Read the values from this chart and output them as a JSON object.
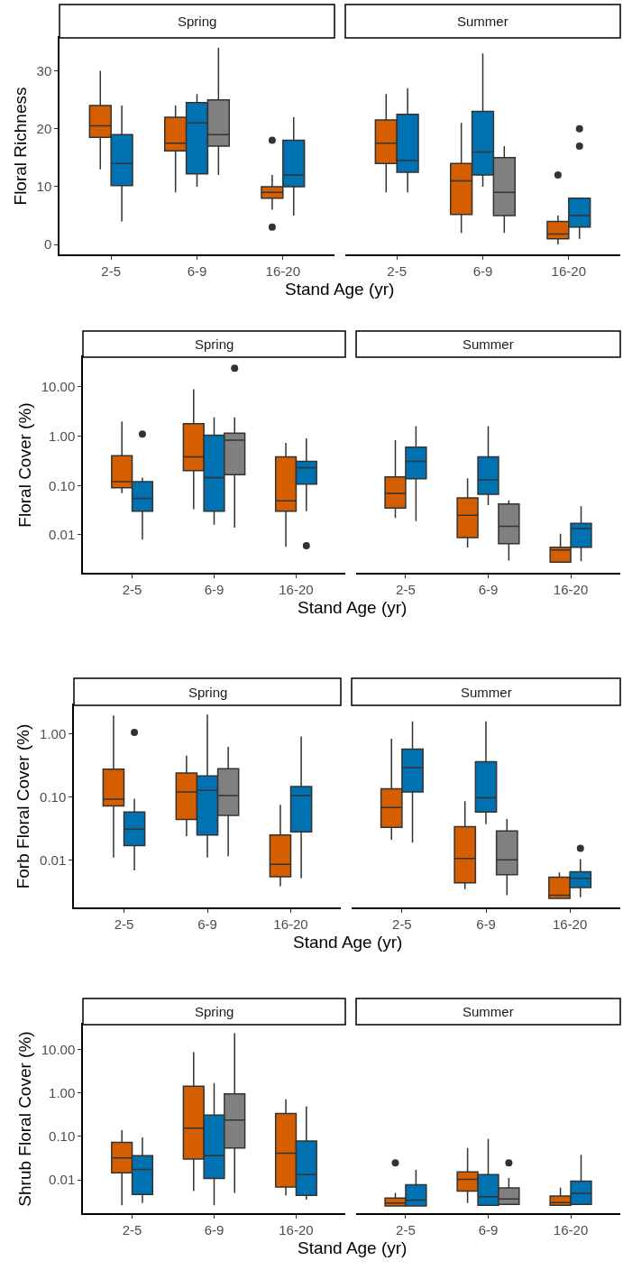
{
  "chart_data": [
    {
      "type": "box",
      "title": "Spring",
      "xlabel": "Stand Age (yr)",
      "ylabel": "Floral Richness",
      "categories": [
        "2-5",
        "6-9",
        "16-20"
      ],
      "ylim": [
        -1.7,
        35.7
      ],
      "yticks": [
        0,
        10,
        20,
        30
      ],
      "series": [
        {
          "color": "#d55e00",
          "boxes": [
            {
              "low": 13,
              "q1": 18.5,
              "median": 20.5,
              "q3": 24,
              "high": 30
            },
            {
              "low": 9,
              "q1": 16.2,
              "median": 17.5,
              "q3": 22,
              "high": 24
            },
            {
              "low": 6,
              "q1": 8,
              "median": 9,
              "q3": 10,
              "high": 12,
              "outliers": [
                3,
                18
              ]
            }
          ]
        },
        {
          "color": "#0072b2",
          "boxes": [
            {
              "low": 4,
              "q1": 10.2,
              "median": 14,
              "q3": 19,
              "high": 24
            },
            {
              "low": 10,
              "q1": 12.2,
              "median": 21,
              "q3": 24.5,
              "high": 26
            },
            {
              "low": 5,
              "q1": 10,
              "median": 12,
              "q3": 18,
              "high": 22
            }
          ]
        },
        {
          "color": "#808080",
          "boxes": [
            null,
            {
              "low": 12,
              "q1": 17,
              "median": 19,
              "q3": 25,
              "high": 34
            },
            null
          ]
        }
      ]
    },
    {
      "type": "box",
      "title": "Summer",
      "categories": [
        "2-5",
        "6-9",
        "16-20"
      ],
      "ylim": [
        -1.7,
        35.7
      ],
      "tick_labels": "x",
      "series": [
        {
          "color": "#d55e00",
          "boxes": [
            {
              "low": 9,
              "q1": 14,
              "median": 17.5,
              "q3": 21.5,
              "high": 26
            },
            {
              "low": 2,
              "q1": 5.2,
              "median": 11,
              "q3": 14,
              "high": 21
            },
            {
              "low": 0,
              "q1": 1,
              "median": 1.8,
              "q3": 4,
              "high": 5,
              "outliers": [
                12
              ]
            }
          ]
        },
        {
          "color": "#0072b2",
          "boxes": [
            {
              "low": 9,
              "q1": 12.5,
              "median": 14.5,
              "q3": 22.5,
              "high": 27
            },
            {
              "low": 10,
              "q1": 12,
              "median": 16,
              "q3": 23,
              "high": 33
            },
            {
              "low": 1,
              "q1": 3,
              "median": 5,
              "q3": 8,
              "high": 8,
              "outliers": [
                17,
                20
              ]
            }
          ]
        },
        {
          "color": "#808080",
          "boxes": [
            null,
            {
              "low": 2,
              "q1": 5,
              "median": 9,
              "q3": 15,
              "high": 17
            },
            null
          ]
        }
      ]
    },
    {
      "type": "box",
      "title": "Spring",
      "xlabel": "Stand Age (yr)",
      "ylabel": "Floral Cover (%)",
      "categories": [
        "2-5",
        "6-9",
        "16-20"
      ],
      "log": true,
      "ylim": [
        0.0017,
        40
      ],
      "yticks": [
        {
          "value": 0.01,
          "label": "0.01"
        },
        {
          "value": 0.1,
          "label": "0.10"
        },
        {
          "value": 1,
          "label": "1.00"
        },
        {
          "value": 10,
          "label": "10.00"
        }
      ],
      "series": [
        {
          "color": "#d55e00",
          "boxes": [
            {
              "low": 0.07,
              "q1": 0.09,
              "median": 0.12,
              "q3": 0.4,
              "high": 2.0
            },
            {
              "low": 0.033,
              "q1": 0.2,
              "median": 0.38,
              "q3": 1.8,
              "high": 9
            },
            {
              "low": 0.0057,
              "q1": 0.03,
              "median": 0.049,
              "q3": 0.38,
              "high": 0.73
            }
          ]
        },
        {
          "color": "#0072b2",
          "boxes": [
            {
              "low": 0.008,
              "q1": 0.03,
              "median": 0.055,
              "q3": 0.12,
              "high": 0.145,
              "outliers": [
                1.1
              ]
            },
            {
              "low": 0.016,
              "q1": 0.03,
              "median": 0.145,
              "q3": 1.05,
              "high": 2.4
            },
            {
              "low": 0.03,
              "q1": 0.107,
              "median": 0.23,
              "q3": 0.31,
              "high": 0.9,
              "outliers": [
                0.006
              ]
            }
          ]
        },
        {
          "color": "#808080",
          "boxes": [
            null,
            {
              "low": 0.014,
              "q1": 0.165,
              "median": 0.83,
              "q3": 1.15,
              "high": 2.4,
              "outliers": [
                24
              ]
            },
            null
          ]
        }
      ]
    },
    {
      "type": "box",
      "title": "Summer",
      "categories": [
        "2-5",
        "6-9",
        "16-20"
      ],
      "log": true,
      "ylim": [
        0.0017,
        40
      ],
      "tick_labels": "x",
      "series": [
        {
          "color": "#d55e00",
          "boxes": [
            {
              "low": 0.022,
              "q1": 0.035,
              "median": 0.069,
              "q3": 0.15,
              "high": 0.83
            },
            {
              "low": 0.0055,
              "q1": 0.0088,
              "median": 0.025,
              "q3": 0.056,
              "high": 0.14
            },
            {
              "low": 0.0028,
              "q1": 0.0028,
              "median": 0.0049,
              "q3": 0.0056,
              "high": 0.0105
            }
          ]
        },
        {
          "color": "#0072b2",
          "boxes": [
            {
              "low": 0.019,
              "q1": 0.137,
              "median": 0.31,
              "q3": 0.6,
              "high": 1.6
            },
            {
              "low": 0.04,
              "q1": 0.066,
              "median": 0.13,
              "q3": 0.38,
              "high": 1.6
            },
            {
              "low": 0.0029,
              "q1": 0.0056,
              "median": 0.0134,
              "q3": 0.017,
              "high": 0.038
            }
          ]
        },
        {
          "color": "#808080",
          "boxes": [
            null,
            {
              "low": 0.003,
              "q1": 0.0066,
              "median": 0.0148,
              "q3": 0.042,
              "high": 0.05
            },
            null
          ]
        }
      ]
    },
    {
      "type": "box",
      "title": "Spring",
      "xlabel": "Stand Age (yr)",
      "ylabel": "Forb Floral Cover (%)",
      "categories": [
        "2-5",
        "6-9",
        "16-20"
      ],
      "log": true,
      "ylim": [
        0.0018,
        2.8
      ],
      "yticks": [
        {
          "value": 0.01,
          "label": "0.01"
        },
        {
          "value": 0.1,
          "label": "0.10"
        },
        {
          "value": 1,
          "label": "1.00"
        }
      ],
      "series": [
        {
          "color": "#d55e00",
          "boxes": [
            {
              "low": 0.011,
              "q1": 0.072,
              "median": 0.092,
              "q3": 0.275,
              "high": 1.94
            },
            {
              "low": 0.024,
              "q1": 0.044,
              "median": 0.12,
              "q3": 0.24,
              "high": 0.45
            },
            {
              "low": 0.0039,
              "q1": 0.0055,
              "median": 0.0086,
              "q3": 0.025,
              "high": 0.075
            }
          ]
        },
        {
          "color": "#0072b2",
          "boxes": [
            {
              "low": 0.0069,
              "q1": 0.017,
              "median": 0.031,
              "q3": 0.058,
              "high": 0.094,
              "outliers": [
                1.05
              ]
            },
            {
              "low": 0.011,
              "q1": 0.025,
              "median": 0.127,
              "q3": 0.215,
              "high": 2.0
            },
            {
              "low": 0.0052,
              "q1": 0.028,
              "median": 0.105,
              "q3": 0.146,
              "high": 0.9
            }
          ]
        },
        {
          "color": "#808080",
          "boxes": [
            null,
            {
              "low": 0.0116,
              "q1": 0.051,
              "median": 0.105,
              "q3": 0.28,
              "high": 0.62
            },
            null
          ]
        }
      ]
    },
    {
      "type": "box",
      "title": "Summer",
      "categories": [
        "2-5",
        "6-9",
        "16-20"
      ],
      "log": true,
      "ylim": [
        0.0018,
        2.8
      ],
      "tick_labels": "x",
      "series": [
        {
          "color": "#d55e00",
          "boxes": [
            {
              "low": 0.021,
              "q1": 0.033,
              "median": 0.068,
              "q3": 0.135,
              "high": 0.83
            },
            {
              "low": 0.0035,
              "q1": 0.0044,
              "median": 0.0107,
              "q3": 0.034,
              "high": 0.086
            },
            {
              "low": 0.0025,
              "q1": 0.0025,
              "median": 0.0028,
              "q3": 0.0054,
              "high": 0.0064
            }
          ]
        },
        {
          "color": "#0072b2",
          "boxes": [
            {
              "low": 0.019,
              "q1": 0.12,
              "median": 0.29,
              "q3": 0.57,
              "high": 1.56
            },
            {
              "low": 0.037,
              "q1": 0.058,
              "median": 0.097,
              "q3": 0.36,
              "high": 1.56
            },
            {
              "low": 0.0026,
              "q1": 0.0037,
              "median": 0.0052,
              "q3": 0.0066,
              "high": 0.0104,
              "outliers": [
                0.0154
              ]
            }
          ]
        },
        {
          "color": "#808080",
          "boxes": [
            null,
            {
              "low": 0.0028,
              "q1": 0.0059,
              "median": 0.0102,
              "q3": 0.029,
              "high": 0.045
            },
            null
          ]
        }
      ]
    },
    {
      "type": "box",
      "title": "Spring",
      "xlabel": "Stand Age (yr)",
      "ylabel": "Shrub Floral Cover (%)",
      "categories": [
        "2-5",
        "6-9",
        "16-20"
      ],
      "log": true,
      "ylim": [
        0.0017,
        38
      ],
      "yticks": [
        {
          "value": 0.01,
          "label": "0.01"
        },
        {
          "value": 0.1,
          "label": "0.10"
        },
        {
          "value": 1,
          "label": "1.00"
        },
        {
          "value": 10,
          "label": "10.00"
        }
      ],
      "series": [
        {
          "color": "#d55e00",
          "boxes": [
            {
              "low": 0.0026,
              "q1": 0.0145,
              "median": 0.032,
              "q3": 0.073,
              "high": 0.14
            },
            {
              "low": 0.0055,
              "q1": 0.03,
              "median": 0.155,
              "q3": 1.45,
              "high": 8.8
            },
            {
              "low": 0.0044,
              "q1": 0.0068,
              "median": 0.041,
              "q3": 0.34,
              "high": 0.72
            }
          ]
        },
        {
          "color": "#0072b2",
          "boxes": [
            {
              "low": 0.0029,
              "q1": 0.0046,
              "median": 0.0174,
              "q3": 0.036,
              "high": 0.095
            },
            {
              "low": 0.0026,
              "q1": 0.0108,
              "median": 0.036,
              "q3": 0.31,
              "high": 1.7
            },
            {
              "low": 0.0035,
              "q1": 0.0044,
              "median": 0.0132,
              "q3": 0.079,
              "high": 0.5
            }
          ]
        },
        {
          "color": "#808080",
          "boxes": [
            null,
            {
              "low": 0.005,
              "q1": 0.054,
              "median": 0.24,
              "q3": 0.96,
              "high": 24
            },
            null
          ]
        }
      ]
    },
    {
      "type": "box",
      "title": "Summer",
      "categories": [
        "2-5",
        "6-9",
        "16-20"
      ],
      "log": true,
      "ylim": [
        0.0017,
        38
      ],
      "tick_labels": "x",
      "series": [
        {
          "color": "#d55e00",
          "boxes": [
            {
              "low": 0.0025,
              "q1": 0.0025,
              "median": 0.0029,
              "q3": 0.0038,
              "high": 0.005,
              "outliers": [
                0.0246
              ]
            },
            {
              "low": 0.0029,
              "q1": 0.0055,
              "median": 0.0102,
              "q3": 0.0152,
              "high": 0.054
            },
            {
              "low": 0.0026,
              "q1": 0.0026,
              "median": 0.003,
              "q3": 0.0042,
              "high": 0.0066
            }
          ]
        },
        {
          "color": "#0072b2",
          "boxes": [
            {
              "low": 0.0025,
              "q1": 0.0025,
              "median": 0.0034,
              "q3": 0.0077,
              "high": 0.017
            },
            {
              "low": 0.0026,
              "q1": 0.0026,
              "median": 0.0041,
              "q3": 0.0132,
              "high": 0.088
            },
            {
              "low": 0.0027,
              "q1": 0.0027,
              "median": 0.0049,
              "q3": 0.0093,
              "high": 0.038
            }
          ]
        },
        {
          "color": "#808080",
          "boxes": [
            null,
            {
              "low": 0.0027,
              "q1": 0.0027,
              "median": 0.0036,
              "q3": 0.0065,
              "high": 0.011,
              "outliers": [
                0.0246
              ]
            },
            null
          ]
        }
      ]
    }
  ]
}
